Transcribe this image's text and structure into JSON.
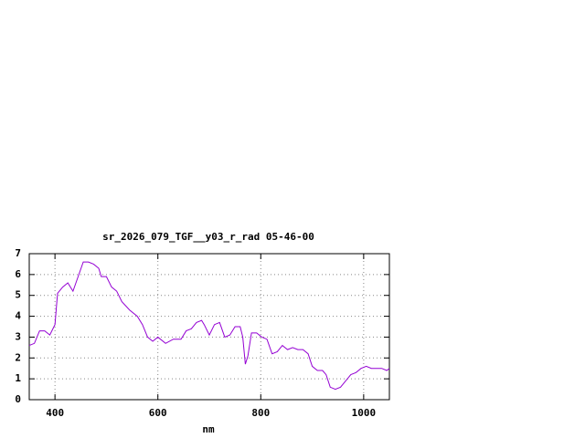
{
  "chart_data": {
    "type": "line",
    "title": "sr_2026_079_TGF__y03_r_rad 05-46-00",
    "x_label": "nm",
    "x": [
      350,
      360,
      370,
      380,
      390,
      400,
      405,
      415,
      425,
      435,
      445,
      455,
      465,
      475,
      485,
      490,
      500,
      510,
      520,
      530,
      545,
      560,
      570,
      580,
      590,
      600,
      615,
      630,
      645,
      655,
      665,
      675,
      685,
      690,
      700,
      710,
      720,
      730,
      740,
      750,
      760,
      765,
      770,
      775,
      782,
      792,
      802,
      812,
      822,
      832,
      842,
      852,
      862,
      872,
      882,
      892,
      900,
      910,
      920,
      927,
      935,
      945,
      955,
      965,
      975,
      985,
      995,
      1005,
      1015,
      1025,
      1035,
      1045,
      1050
    ],
    "series": [
      {
        "name": null,
        "color": "#9400d3",
        "values": [
          2.6,
          2.7,
          3.3,
          3.3,
          3.1,
          3.6,
          5.1,
          5.4,
          5.6,
          5.2,
          5.9,
          6.6,
          6.6,
          6.5,
          6.3,
          5.9,
          5.9,
          5.4,
          5.2,
          4.7,
          4.3,
          4.0,
          3.6,
          3.0,
          2.8,
          3.0,
          2.7,
          2.9,
          2.9,
          3.3,
          3.4,
          3.7,
          3.8,
          3.6,
          3.1,
          3.6,
          3.7,
          3.0,
          3.1,
          3.5,
          3.5,
          3.0,
          1.7,
          2.1,
          3.2,
          3.2,
          3.0,
          2.9,
          2.2,
          2.3,
          2.6,
          2.4,
          2.5,
          2.4,
          2.4,
          2.2,
          1.6,
          1.4,
          1.4,
          1.2,
          0.6,
          0.5,
          0.6,
          0.9,
          1.2,
          1.3,
          1.5,
          1.6,
          1.5,
          1.5,
          1.5,
          1.4,
          1.5
        ]
      }
    ],
    "xlim": [
      350,
      1050
    ],
    "xticks": [
      400,
      600,
      800,
      1000
    ],
    "ylim": [
      0,
      7
    ],
    "yticks": [
      0,
      1,
      2,
      3,
      4,
      5,
      6,
      7
    ],
    "grid": true
  }
}
